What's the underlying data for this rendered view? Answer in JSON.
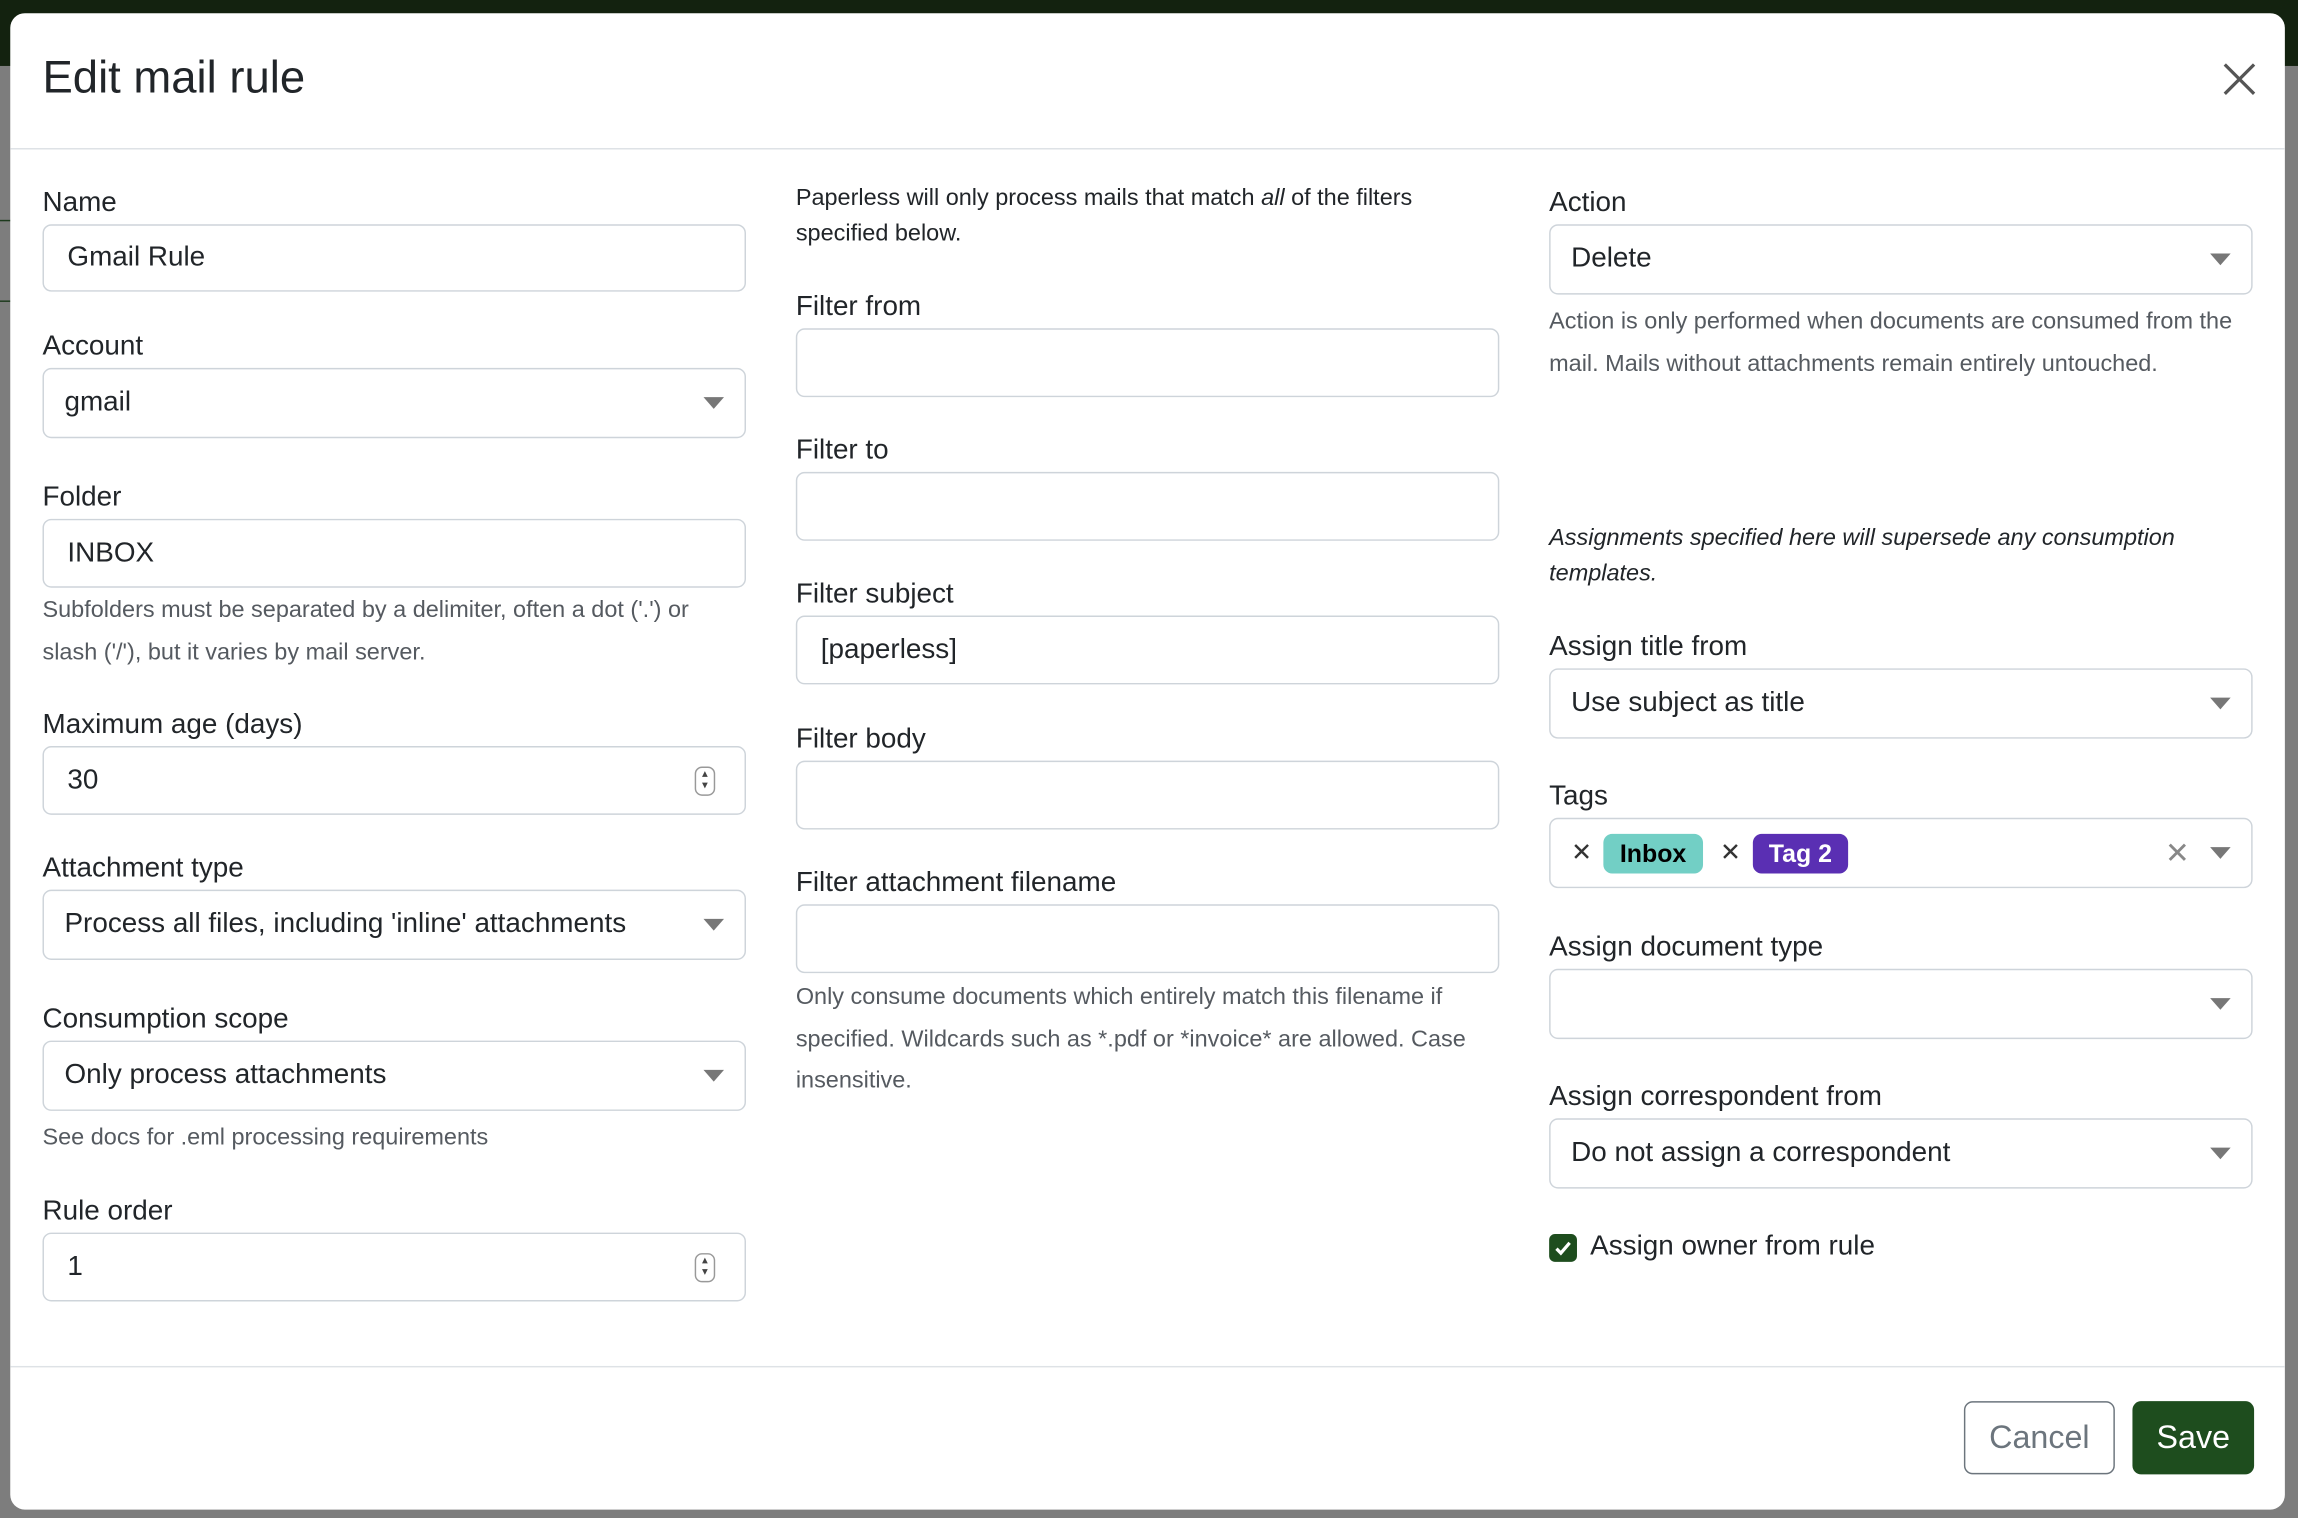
{
  "modal": {
    "title": "Edit mail rule",
    "close_icon": "close-icon",
    "footer": {
      "cancel_label": "Cancel",
      "save_label": "Save"
    }
  },
  "colors": {
    "primary": "#1e4d1e",
    "tag_inbox_bg": "#72cfc5",
    "tag_2_bg": "#5a2fb3",
    "backdrop_top": "#13220f"
  },
  "left": {
    "name": {
      "label": "Name",
      "value": "Gmail Rule"
    },
    "account": {
      "label": "Account",
      "value": "gmail"
    },
    "folder": {
      "label": "Folder",
      "value": "INBOX",
      "help": "Subfolders must be separated by a delimiter, often a dot ('.') or slash ('/'), but it varies by mail server."
    },
    "max_age": {
      "label": "Maximum age (days)",
      "value": "30"
    },
    "attachment_type": {
      "label": "Attachment type",
      "value": "Process all files, including 'inline' attachments"
    },
    "consumption_scope": {
      "label": "Consumption scope",
      "value": "Only process attachments",
      "help": "See docs for .eml processing requirements"
    },
    "rule_order": {
      "label": "Rule order",
      "value": "1"
    }
  },
  "middle": {
    "intro_before": "Paperless will only process mails that match ",
    "intro_em": "all",
    "intro_after": " of the filters specified below.",
    "filter_from": {
      "label": "Filter from",
      "value": ""
    },
    "filter_to": {
      "label": "Filter to",
      "value": ""
    },
    "filter_subject": {
      "label": "Filter subject",
      "value": "[paperless]"
    },
    "filter_body": {
      "label": "Filter body",
      "value": ""
    },
    "filter_attachment": {
      "label": "Filter attachment filename",
      "value": "",
      "help": "Only consume documents which entirely match this filename if specified. Wildcards such as *.pdf or *invoice* are allowed. Case insensitive."
    }
  },
  "right": {
    "action": {
      "label": "Action",
      "value": "Delete",
      "help": "Action is only performed when documents are consumed from the mail. Mails without attachments remain entirely untouched."
    },
    "assign_note": "Assignments specified here will supersede any consumption templates.",
    "assign_title": {
      "label": "Assign title from",
      "value": "Use subject as title"
    },
    "tags": {
      "label": "Tags",
      "items": [
        {
          "label": "Inbox"
        },
        {
          "label": "Tag 2"
        }
      ]
    },
    "doc_type": {
      "label": "Assign document type",
      "value": ""
    },
    "correspondent": {
      "label": "Assign correspondent from",
      "value": "Do not assign a correspondent"
    },
    "owner": {
      "label": "Assign owner from rule",
      "checked": true
    }
  }
}
